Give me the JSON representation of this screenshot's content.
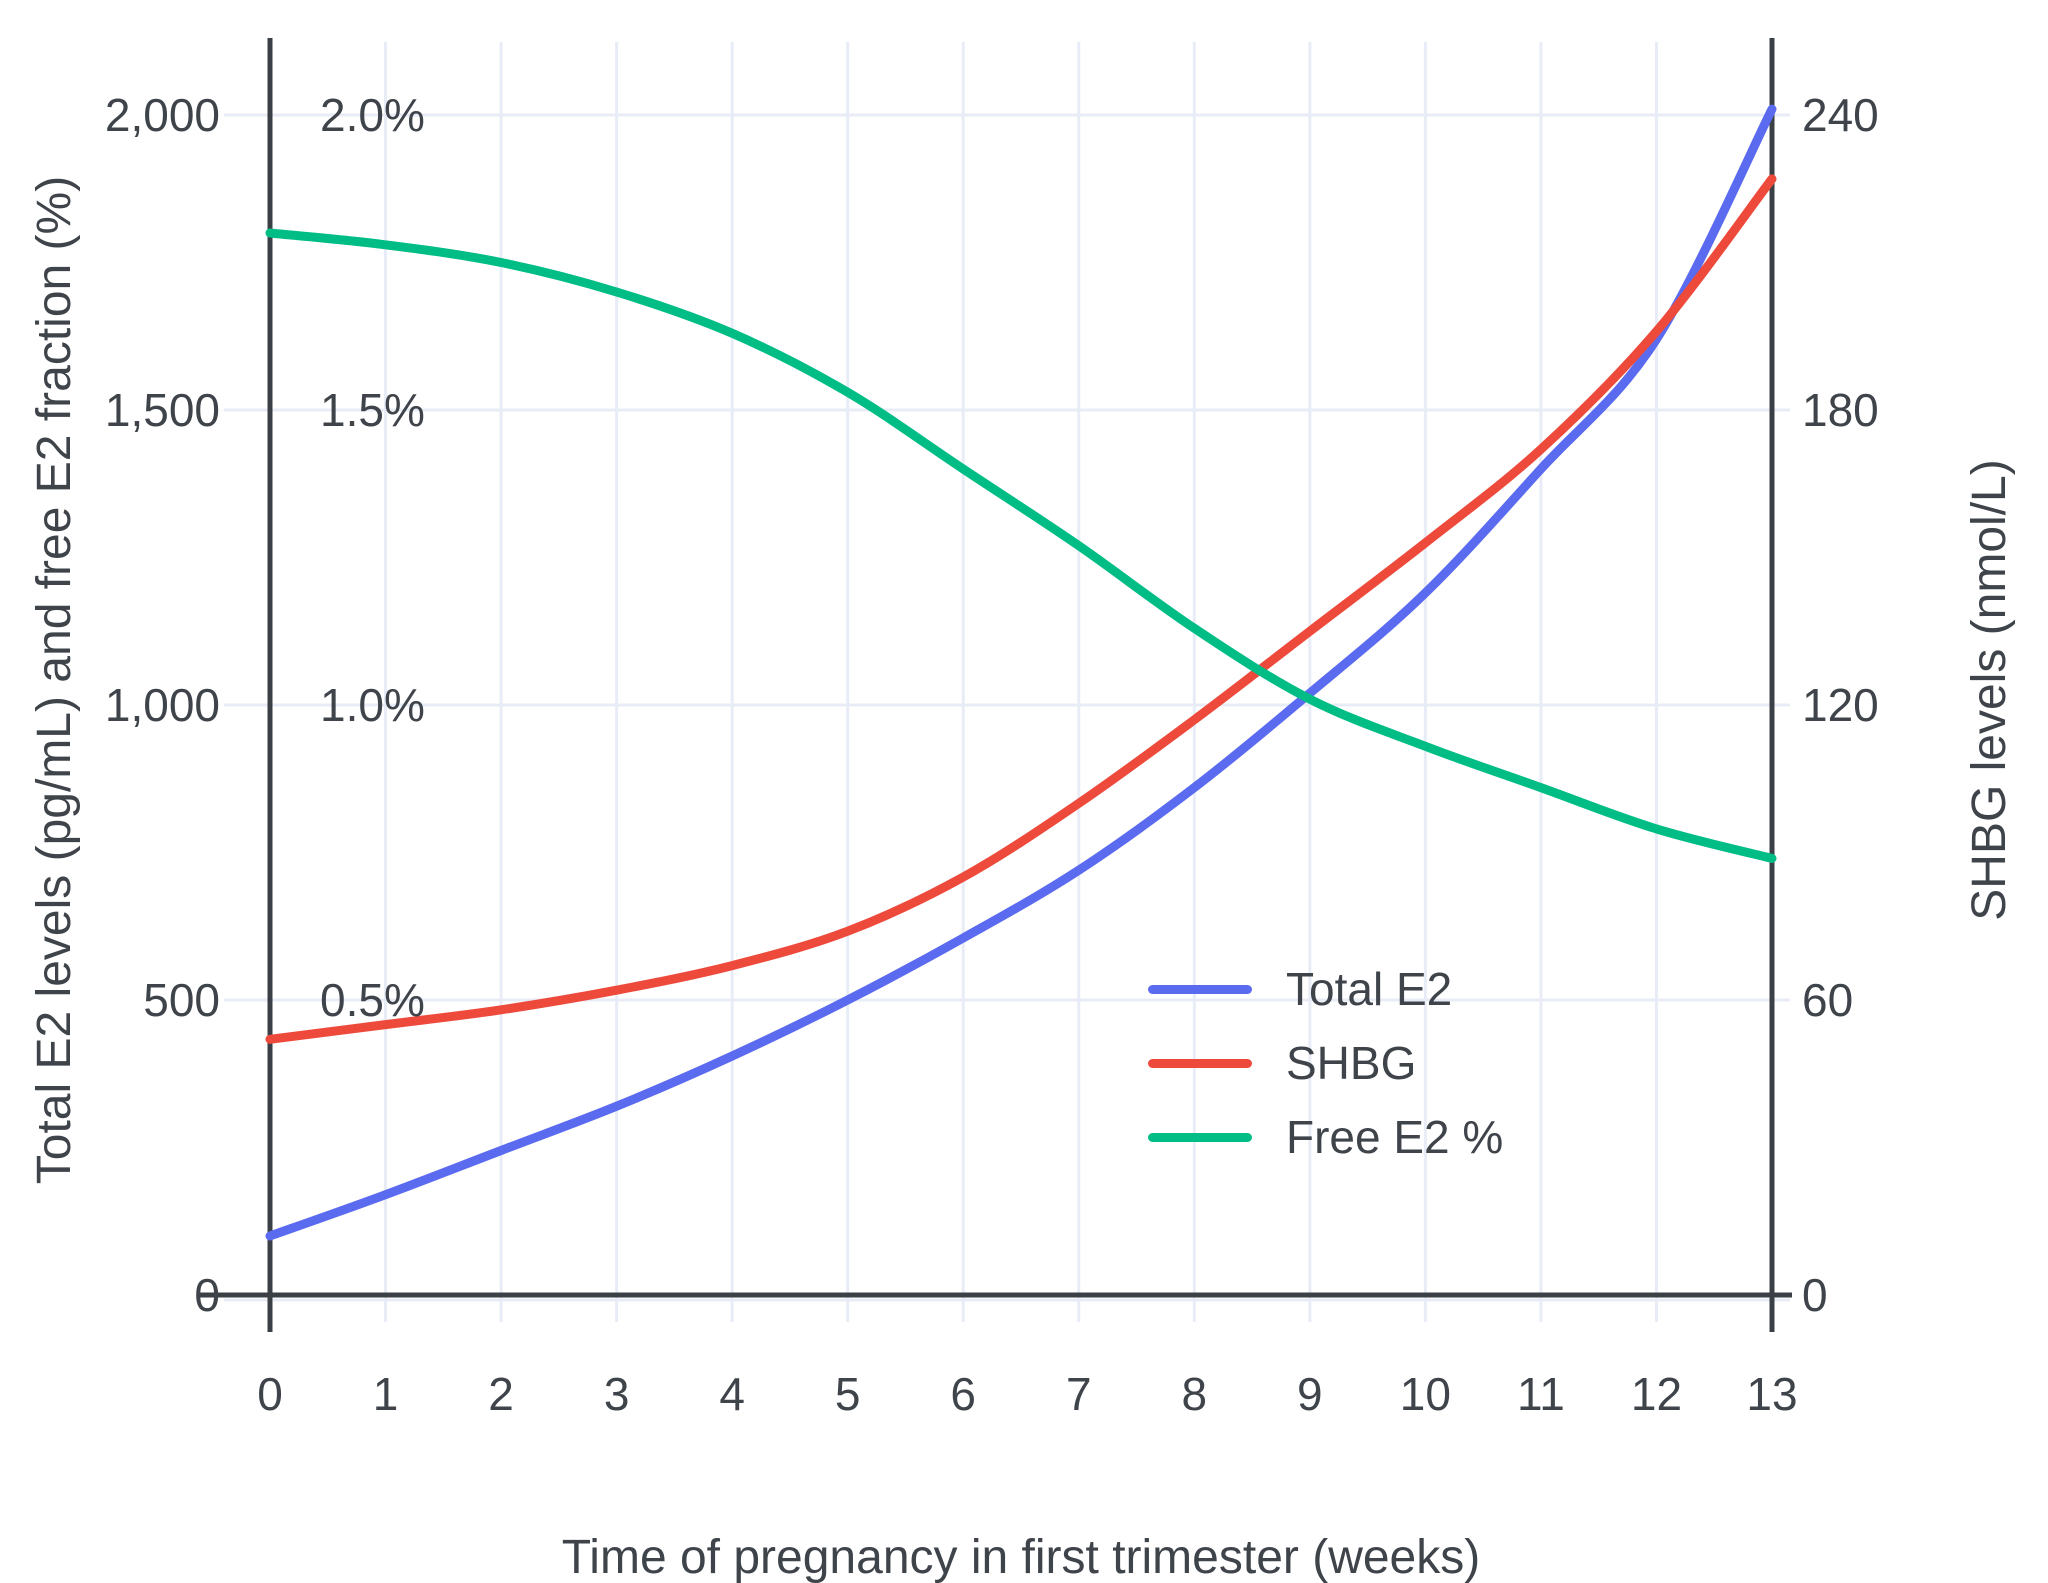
{
  "chart_data": {
    "type": "line",
    "x": [
      0,
      1,
      2,
      3,
      4,
      5,
      6,
      7,
      8,
      9,
      10,
      11,
      12,
      13
    ],
    "xlabel": "Time of pregnancy in first trimester (weeks)",
    "ylabel_left": "Total E2 levels (pg/mL) and free E2 fraction (%)",
    "ylabel_right": "SHBG levels (nmol/L)",
    "ylim_left": [
      0,
      2125
    ],
    "ylim_right": [
      0,
      255
    ],
    "grid": true,
    "legend_position": "middle-right",
    "series": [
      {
        "name": "Total E2",
        "axis": "left",
        "unit": "pg/mL",
        "color": "#5b6bf0",
        "values": [
          100,
          170,
          245,
          320,
          405,
          500,
          605,
          720,
          860,
          1020,
          1190,
          1400,
          1620,
          2010
        ]
      },
      {
        "name": "SHBG",
        "axis": "right",
        "unit": "nmol/L",
        "color": "#ee4a3c",
        "values": [
          52,
          55,
          58,
          62,
          67,
          74,
          85,
          100,
          117,
          135,
          153,
          172,
          196,
          227
        ]
      },
      {
        "name": "Free E2 %",
        "axis": "percent",
        "unit": "%",
        "color": "#00bd85",
        "values": [
          1.8,
          1.78,
          1.75,
          1.7,
          1.63,
          1.53,
          1.4,
          1.27,
          1.13,
          1.01,
          0.93,
          0.86,
          0.79,
          0.74
        ]
      }
    ],
    "left_ticks": [
      {
        "v": 0,
        "label": "0"
      },
      {
        "v": 500,
        "label": "500"
      },
      {
        "v": 1000,
        "label": "1,000"
      },
      {
        "v": 1500,
        "label": "1,500"
      },
      {
        "v": 2000,
        "label": "2,000"
      }
    ],
    "percent_ticks": [
      {
        "v": 500,
        "label": "0.5%"
      },
      {
        "v": 1000,
        "label": "1.0%"
      },
      {
        "v": 1500,
        "label": "1.5%"
      },
      {
        "v": 2000,
        "label": "2.0%"
      }
    ],
    "right_ticks": [
      {
        "v": 0,
        "label": "0"
      },
      {
        "v": 60,
        "label": "60"
      },
      {
        "v": 120,
        "label": "120"
      },
      {
        "v": 180,
        "label": "180"
      },
      {
        "v": 240,
        "label": "240"
      }
    ],
    "x_ticks": [
      {
        "v": 0,
        "label": "0"
      },
      {
        "v": 1,
        "label": "1"
      },
      {
        "v": 2,
        "label": "2"
      },
      {
        "v": 3,
        "label": "3"
      },
      {
        "v": 4,
        "label": "4"
      },
      {
        "v": 5,
        "label": "5"
      },
      {
        "v": 6,
        "label": "6"
      },
      {
        "v": 7,
        "label": "7"
      },
      {
        "v": 8,
        "label": "8"
      },
      {
        "v": 9,
        "label": "9"
      },
      {
        "v": 10,
        "label": "10"
      },
      {
        "v": 11,
        "label": "11"
      },
      {
        "v": 12,
        "label": "12"
      },
      {
        "v": 13,
        "label": "13"
      }
    ]
  },
  "colors": {
    "axis_line": "#3b4046",
    "grid_line": "#e8ecf6",
    "tick_text": "#3f444b",
    "total_e2": "#5b6bf0",
    "shbg": "#ee4a3c",
    "free_e2": "#00bd85",
    "background": "#ffffff"
  }
}
